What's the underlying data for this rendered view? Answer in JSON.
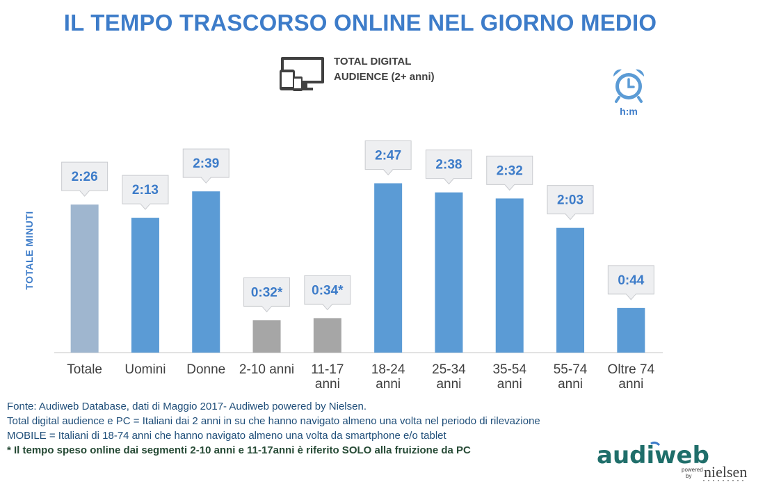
{
  "header": {
    "title": "IL TEMPO TRASCORSO ONLINE NEL GIORNO MEDIO",
    "audience_line1": "TOTAL DIGITAL",
    "audience_line2": "AUDIENCE (2+ anni)",
    "unit_label": "h:m"
  },
  "icons": [
    "devices-icon",
    "alarm-clock-icon"
  ],
  "colors": {
    "title": "#3d7cc9",
    "bar_blue": "#5b9bd5",
    "bar_total": "#9fb6cf",
    "bar_gray": "#a6a6a6",
    "label_text": "#3d7cc9",
    "callout_fill": "#eeeff1",
    "logo_green": "#1f6e6a"
  },
  "chart_data": {
    "type": "bar",
    "ylabel": "TOTALE MINUTI",
    "categories": [
      [
        "Totale"
      ],
      [
        "Uomini"
      ],
      [
        "Donne"
      ],
      [
        "2-10 anni"
      ],
      [
        "11-17",
        "anni"
      ],
      [
        "18-24",
        "anni"
      ],
      [
        "25-34",
        "anni"
      ],
      [
        "35-54",
        "anni"
      ],
      [
        "55-74",
        "anni"
      ],
      [
        "Oltre 74",
        "anni"
      ]
    ],
    "values": [
      146,
      133,
      159,
      32,
      34,
      167,
      158,
      152,
      123,
      44
    ],
    "labels": [
      "2:26",
      "2:13",
      "2:39",
      "0:32*",
      "0:34*",
      "2:47",
      "2:38",
      "2:32",
      "2:03",
      "0:44"
    ],
    "bar_color_keys": [
      "bar_total",
      "bar_blue",
      "bar_blue",
      "bar_gray",
      "bar_gray",
      "bar_blue",
      "bar_blue",
      "bar_blue",
      "bar_blue",
      "bar_blue"
    ],
    "ylim": [
      0,
      180
    ],
    "grid": false,
    "legend": "none"
  },
  "footnotes": {
    "line1": "Fonte: Audiweb Database, dati di Maggio 2017- Audiweb powered by Nielsen.",
    "line2": "Total digital audience e PC = Italiani dai 2 anni in su che hanno navigato almeno una volta nel periodo di rilevazione",
    "line3": "MOBILE = Italiani di 18-74 anni che hanno navigato almeno una volta da smartphone e/o tablet",
    "line4": "* Il tempo speso online dai segmenti 2-10 anni e 11-17anni è riferito SOLO alla fruizione da PC"
  },
  "logo": {
    "main": "audiweb",
    "powered": "powered",
    "by": "by",
    "brand": "nielsen"
  }
}
